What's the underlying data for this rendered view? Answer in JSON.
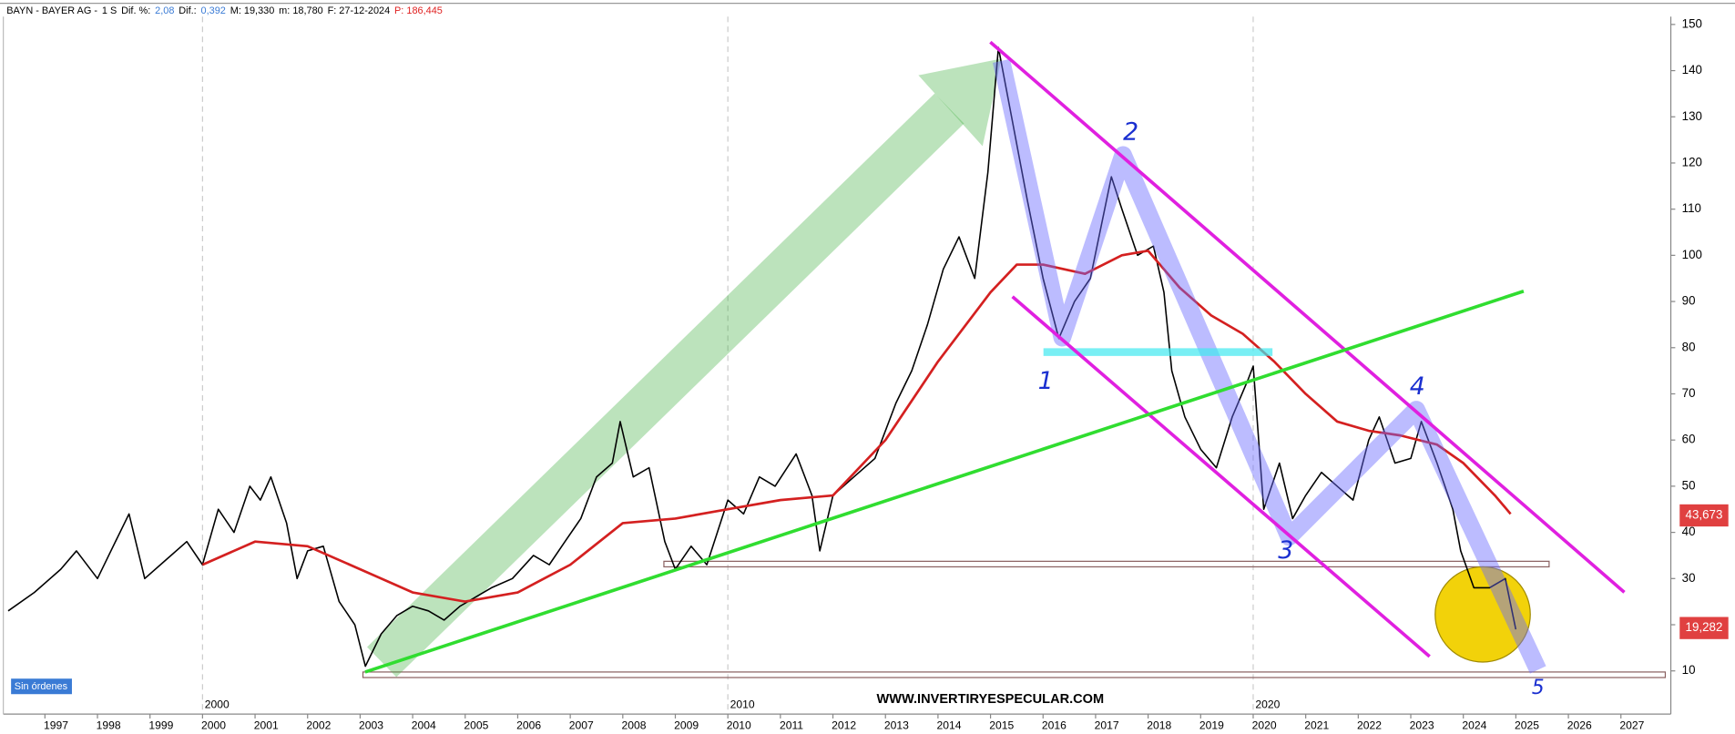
{
  "chart_data": {
    "type": "line",
    "header": [
      {
        "text": "BAYN - BAYER AG -",
        "color": "#000000"
      },
      {
        "text": "1 S",
        "color": "#000000"
      },
      {
        "text": "Dif. %:",
        "color": "#000000"
      },
      {
        "text": "2,08",
        "color": "#3a7bd5"
      },
      {
        "text": "Dif.:",
        "color": "#000000"
      },
      {
        "text": "0,392",
        "color": "#3a7bd5"
      },
      {
        "text": "M: 19,330",
        "color": "#000000"
      },
      {
        "text": "m: 18,780",
        "color": "#000000"
      },
      {
        "text": "F: 27-12-2024",
        "color": "#000000"
      },
      {
        "text": "P: 186,445",
        "color": "#e02020"
      }
    ],
    "xlim": [
      1996.25,
      2027.95
    ],
    "ylim": [
      0.65,
      151.7
    ],
    "yticks": [
      10,
      20,
      30,
      40,
      50,
      60,
      70,
      80,
      90,
      100,
      110,
      120,
      130,
      140,
      150
    ],
    "xticks": [
      1997,
      1998,
      1999,
      2000,
      2001,
      2002,
      2003,
      2004,
      2005,
      2006,
      2007,
      2008,
      2009,
      2010,
      2011,
      2012,
      2013,
      2014,
      2015,
      2016,
      2017,
      2018,
      2019,
      2020,
      2021,
      2022,
      2023,
      2024,
      2025,
      2026,
      2027
    ],
    "decade_ticks": [
      2000,
      2010,
      2020
    ],
    "series": [
      {
        "color": "#000000",
        "x": [
          1996.3,
          1996.8,
          1997.3,
          1997.6,
          1998.0,
          1998.3,
          1998.6,
          1998.9,
          1999.3,
          1999.7,
          2000.0,
          2000.3,
          2000.6,
          2000.9,
          2001.1,
          2001.3,
          2001.6,
          2001.8,
          2002.0,
          2002.3,
          2002.6,
          2002.9,
          2003.1,
          2003.4,
          2003.7,
          2004.0,
          2004.3,
          2004.6,
          2004.9,
          2005.2,
          2005.5,
          2005.9,
          2006.3,
          2006.6,
          2006.9,
          2007.2,
          2007.5,
          2007.8,
          2007.95,
          2008.2,
          2008.5,
          2008.8,
          2009.0,
          2009.3,
          2009.6,
          2009.8,
          2010.0,
          2010.3,
          2010.6,
          2010.9,
          2011.3,
          2011.6,
          2011.75,
          2012.0,
          2012.4,
          2012.8,
          2013.2,
          2013.5,
          2013.8,
          2014.1,
          2014.4,
          2014.7,
          2014.95,
          2015.15,
          2015.4,
          2015.7,
          2016.0,
          2016.3,
          2016.6,
          2016.9,
          2017.3,
          2017.5,
          2017.8,
          2018.1,
          2018.3,
          2018.45,
          2018.7,
          2019.0,
          2019.3,
          2019.6,
          2019.9,
          2020.0,
          2020.2,
          2020.5,
          2020.75,
          2021.0,
          2021.3,
          2021.6,
          2021.9,
          2022.2,
          2022.4,
          2022.7,
          2023.0,
          2023.2,
          2023.5,
          2023.8,
          2023.95,
          2024.2,
          2024.5,
          2024.8,
          2025.0
        ],
        "values": [
          23,
          27,
          32,
          36,
          30,
          37,
          44,
          30,
          34,
          38,
          33,
          45,
          40,
          50,
          47,
          52,
          42,
          30,
          36,
          37,
          25,
          20,
          11,
          18,
          22,
          24,
          23,
          21,
          24,
          26,
          28,
          30,
          35,
          33,
          38,
          43,
          52,
          55,
          64,
          52,
          54,
          38,
          32,
          37,
          33,
          40,
          47,
          44,
          52,
          50,
          57,
          48,
          36,
          48,
          52,
          56,
          68,
          75,
          85,
          97,
          104,
          95,
          118,
          145,
          130,
          112,
          95,
          82,
          90,
          95,
          117,
          110,
          100,
          102,
          92,
          75,
          65,
          58,
          54,
          65,
          73,
          76,
          45,
          55,
          43,
          48,
          53,
          50,
          47,
          60,
          65,
          55,
          56,
          64,
          55,
          45,
          36,
          28,
          28,
          30,
          19
        ]
      },
      {
        "color": "#d42020",
        "x": [
          2000.0,
          2001.0,
          2002.0,
          2003.0,
          2004.0,
          2005.0,
          2006.0,
          2007.0,
          2008.0,
          2009.0,
          2010.0,
          2011.0,
          2012.0,
          2013.0,
          2014.0,
          2015.0,
          2015.5,
          2016.0,
          2016.8,
          2017.5,
          2018.0,
          2018.6,
          2019.2,
          2019.8,
          2020.4,
          2021.0,
          2021.6,
          2022.2,
          2022.8,
          2023.5,
          2024.0,
          2024.6,
          2024.9
        ],
        "values": [
          33,
          38,
          37,
          32,
          27,
          25,
          27,
          33,
          42,
          43,
          45,
          47,
          48,
          60,
          77,
          92,
          98,
          98,
          96,
          100,
          101,
          93,
          87,
          83,
          77,
          70,
          64,
          62,
          61,
          59,
          55,
          48,
          44
        ]
      }
    ],
    "price_tags": [
      {
        "value": 43.673,
        "label": "43,673"
      },
      {
        "value": 19.282,
        "label": "19,282"
      }
    ],
    "wave_labels": [
      "1",
      "2",
      "3",
      "4",
      "5"
    ],
    "orders_label": "Sin órdenes",
    "watermark": "WWW.INVERTIRYESPECULAR.COM"
  }
}
